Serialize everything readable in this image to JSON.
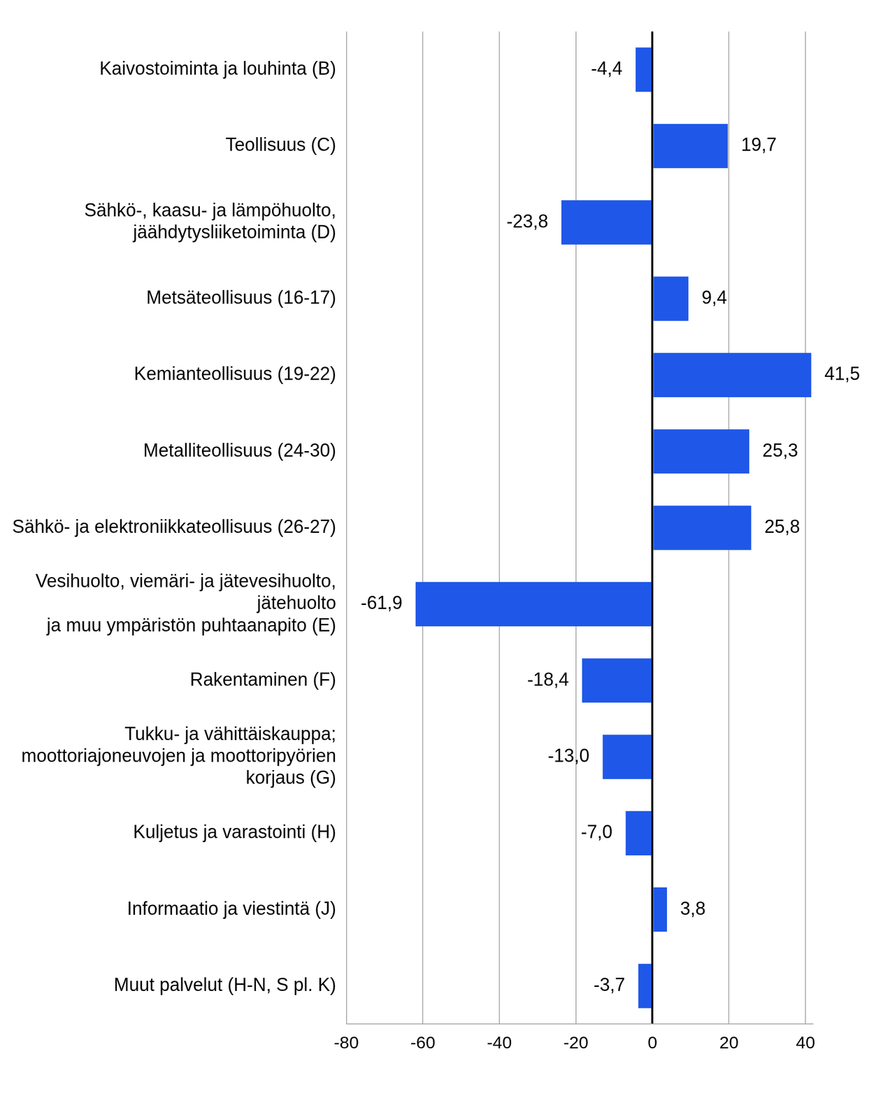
{
  "chart_data": {
    "type": "bar",
    "orientation": "horizontal",
    "categories": [
      "Kaivostoiminta ja louhinta (B)",
      "Teollisuus (C)",
      [
        "Sähkö-, kaasu- ja lämpöhuolto,",
        "jäähdytysliiketoiminta (D)"
      ],
      "Metsäteollisuus (16-17)",
      "Kemianteollisuus (19-22)",
      "Metalliteollisuus (24-30)",
      "Sähkö- ja elektroniikkateollisuus (26-27)",
      [
        "Vesihuolto, viemäri- ja jätevesihuolto,",
        "jätehuolto",
        "ja muu ympäristön puhtaanapito (E)"
      ],
      "Rakentaminen (F)",
      [
        "Tukku- ja vähittäiskauppa;",
        "moottoriajoneuvojen ja moottoripyörien",
        "korjaus (G)"
      ],
      "Kuljetus ja varastointi (H)",
      "Informaatio ja viestintä (J)",
      "Muut palvelut (H-N, S pl. K)"
    ],
    "values": [
      -4.4,
      19.7,
      -23.8,
      9.4,
      41.5,
      25.3,
      25.8,
      -61.9,
      -18.4,
      -13.0,
      -7.0,
      3.8,
      -3.7
    ],
    "value_labels": [
      "-4,4",
      "19,7",
      "-23,8",
      "9,4",
      "41,5",
      "25,3",
      "25,8",
      "-61,9",
      "-18,4",
      "-13,0",
      "-7,0",
      "3,8",
      "-3,7"
    ],
    "data_labels": true,
    "color": "#1f57e8",
    "xlim": [
      -80,
      42
    ],
    "xticks": [
      -80,
      -60,
      -40,
      -20,
      0,
      20,
      40
    ],
    "grid": true
  }
}
